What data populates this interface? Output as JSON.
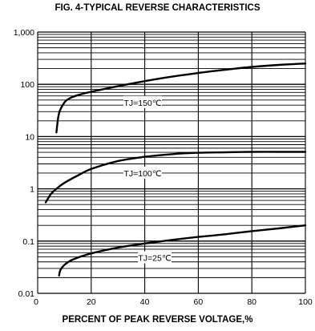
{
  "chart_data": {
    "type": "line",
    "title": "FIG. 4-TYPICAL REVERSE CHARACTERISTICS",
    "xlabel": "PERCENT OF PEAK REVERSE VOLTAGE,%",
    "ylabel": "",
    "xlim": [
      0,
      100
    ],
    "ylim": [
      0.01,
      1000
    ],
    "yscale": "log",
    "grid": true,
    "x_ticks": [
      0,
      20,
      40,
      60,
      80,
      100
    ],
    "x_tick_labels": [
      "0",
      "20",
      "40",
      "60",
      "80",
      "100"
    ],
    "y_ticks": [
      0.01,
      0.1,
      1,
      10,
      100,
      1000
    ],
    "y_tick_labels": [
      "0.01",
      "0.1",
      "1",
      "10",
      "100",
      "1,000"
    ],
    "series": [
      {
        "name": "TJ=150℃",
        "x": [
          7,
          8,
          10,
          12,
          15,
          20,
          30,
          40,
          50,
          60,
          70,
          80,
          90,
          100
        ],
        "y": [
          12,
          28,
          45,
          54,
          62,
          72,
          92,
          115,
          140,
          165,
          190,
          215,
          235,
          250
        ]
      },
      {
        "name": "TJ=100℃",
        "x": [
          3,
          5,
          7,
          10,
          15,
          20,
          30,
          40,
          50,
          60,
          70,
          80,
          90,
          100
        ],
        "y": [
          0.55,
          0.8,
          1.0,
          1.3,
          1.8,
          2.4,
          3.4,
          4.1,
          4.6,
          4.9,
          5.0,
          5.1,
          5.1,
          5.1
        ]
      },
      {
        "name": "TJ=25℃",
        "x": [
          8,
          8.5,
          10,
          13,
          20,
          30,
          40,
          50,
          60,
          70,
          80,
          90,
          100
        ],
        "y": [
          0.022,
          0.028,
          0.035,
          0.044,
          0.058,
          0.075,
          0.09,
          0.105,
          0.12,
          0.135,
          0.155,
          0.175,
          0.2
        ]
      }
    ],
    "annotations": [
      "TJ=150℃",
      "TJ=100℃",
      "TJ=25℃"
    ]
  }
}
